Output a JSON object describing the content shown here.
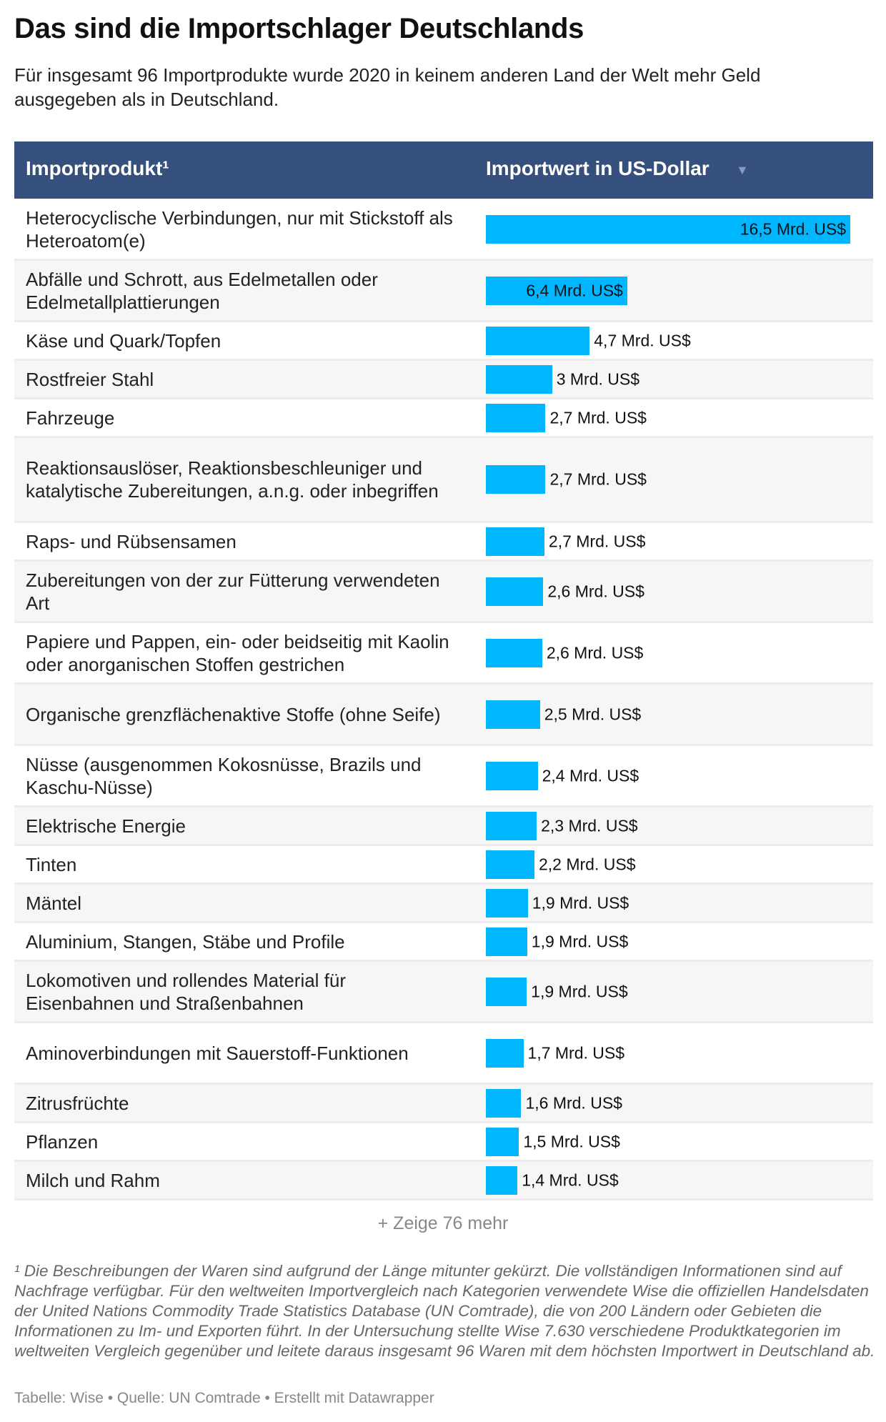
{
  "title": "Das sind die Importschlager Deutschlands",
  "subtitle": "Für insgesamt 96 Importprodukte wurde 2020 in keinem anderen Land der Welt mehr Geld ausgegeben als in Deutschland.",
  "chart_data": {
    "type": "table",
    "columns": [
      "Importprodukt¹",
      "Importwert in US-Dollar"
    ],
    "sort_icon": "triangle-down",
    "bar_color": "#00b7ff",
    "header_color": "#36507d",
    "xlim": [
      0,
      16.5
    ],
    "rows": [
      {
        "label": "Heterocyclische Verbindungen, nur mit Stickstoff als Heteroatom(e)",
        "value": 16.5,
        "text": "16,5 Mrd. US$"
      },
      {
        "label": "Abfälle und Schrott, aus Edelmetallen oder Edelmetallplattierungen",
        "value": 6.4,
        "text": "6,4 Mrd. US$"
      },
      {
        "label": "Käse und Quark/Topfen",
        "value": 4.7,
        "text": "4,7 Mrd. US$"
      },
      {
        "label": "Rostfreier Stahl",
        "value": 3.0,
        "text": "3 Mrd. US$"
      },
      {
        "label": "Fahrzeuge",
        "value": 2.7,
        "text": "2,7 Mrd. US$"
      },
      {
        "label": "Reaktionsauslöser, Reaktionsbeschleuniger und katalytische Zubereitungen, a.n.g. oder inbegriffen",
        "value": 2.7,
        "text": "2,7 Mrd. US$"
      },
      {
        "label": "Raps- und Rübsensamen",
        "value": 2.65,
        "text": "2,7 Mrd. US$"
      },
      {
        "label": "Zubereitungen von der zur Fütterung verwendeten Art",
        "value": 2.6,
        "text": "2,6 Mrd. US$"
      },
      {
        "label": "Papiere und Pappen, ein- oder beidseitig mit Kaolin oder anorganischen Stoffen gestrichen",
        "value": 2.55,
        "text": "2,6 Mrd. US$"
      },
      {
        "label": "Organische grenzflächenaktive Stoffe (ohne Seife)",
        "value": 2.45,
        "text": "2,5 Mrd. US$"
      },
      {
        "label": "Nüsse (ausgenommen Kokosnüsse, Brazils und Kaschu-Nüsse)",
        "value": 2.35,
        "text": "2,4 Mrd. US$"
      },
      {
        "label": "Elektrische Energie",
        "value": 2.3,
        "text": "2,3 Mrd. US$"
      },
      {
        "label": "Tinten",
        "value": 2.2,
        "text": "2,2 Mrd. US$"
      },
      {
        "label": "Mäntel",
        "value": 1.9,
        "text": "1,9 Mrd. US$"
      },
      {
        "label": "Aluminium, Stangen, Stäbe und Profile",
        "value": 1.87,
        "text": "1,9 Mrd. US$"
      },
      {
        "label": "Lokomotiven und rollendes Material für Eisenbahnen und Straßenbahnen",
        "value": 1.85,
        "text": "1,9 Mrd. US$"
      },
      {
        "label": "Aminoverbindungen mit Sauerstoff-Funktionen",
        "value": 1.7,
        "text": "1,7 Mrd. US$"
      },
      {
        "label": "Zitrusfrüchte",
        "value": 1.6,
        "text": "1,6 Mrd. US$"
      },
      {
        "label": "Pflanzen",
        "value": 1.5,
        "text": "1,5 Mrd. US$"
      },
      {
        "label": "Milch und Rahm",
        "value": 1.43,
        "text": "1,4 Mrd. US$"
      }
    ]
  },
  "show_more": "+ Zeige 76 mehr",
  "footnote": "¹ Die Beschreibungen der Waren sind aufgrund der Länge mitunter gekürzt. Die vollständigen Informationen sind auf Nachfrage verfügbar. Für den weltweiten Importvergleich nach Kategorien verwendete Wise die offiziellen Handelsdaten der United Nations Commodity Trade Statistics Database (UN Comtrade), die von 200 Ländern oder Gebieten die Informationen zu Im- und Exporten führt. In der Untersuchung stellte Wise 7.630 verschiedene Produktkategorien im weltweiten Vergleich gegenüber und leitete daraus insgesamt 96 Waren mit dem höchsten Importwert in Deutschland ab.",
  "source": "Tabelle: Wise • Quelle: UN Comtrade • Erstellt mit Datawrapper"
}
